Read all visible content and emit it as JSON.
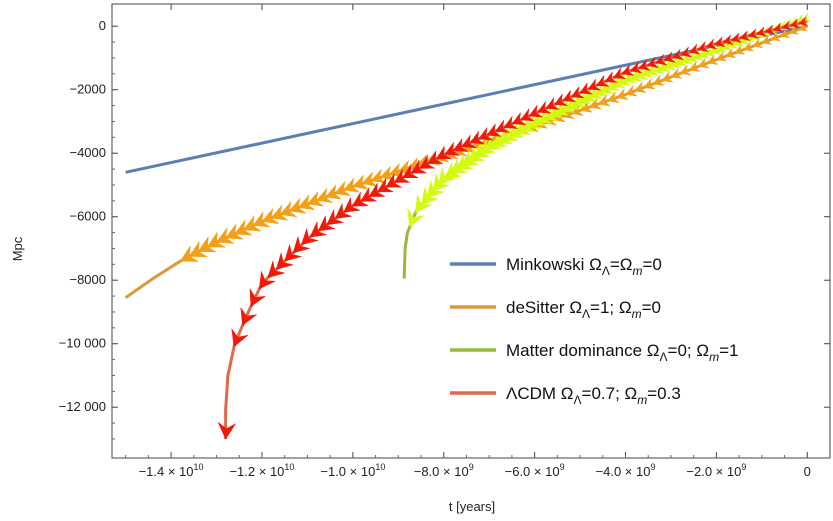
{
  "chart_data": {
    "type": "line",
    "title": "",
    "xlabel": "t [years]",
    "ylabel": "Mpc",
    "xlim": [
      -15300000000.0,
      500000000.0
    ],
    "ylim": [
      -13600,
      700
    ],
    "grid": false,
    "legend_position": "right",
    "x_ticks": [
      {
        "value": -14000000000.0,
        "mantissa": "−1.4",
        "exp": "10"
      },
      {
        "value": -12000000000.0,
        "mantissa": "−1.2",
        "exp": "10"
      },
      {
        "value": -10000000000.0,
        "mantissa": "−1.0",
        "exp": "10"
      },
      {
        "value": -8000000000.0,
        "mantissa": "−8.0",
        "exp": "9"
      },
      {
        "value": -6000000000.0,
        "mantissa": "−6.0",
        "exp": "9"
      },
      {
        "value": -4000000000.0,
        "mantissa": "−4.0",
        "exp": "9"
      },
      {
        "value": -2000000000.0,
        "mantissa": "−2.0",
        "exp": "9"
      },
      {
        "value": 0,
        "plain": "0"
      }
    ],
    "y_ticks": [
      {
        "value": 0,
        "label": "0"
      },
      {
        "value": -2000,
        "label": "−2000"
      },
      {
        "value": -4000,
        "label": "−4000"
      },
      {
        "value": -6000,
        "label": "−6000"
      },
      {
        "value": -8000,
        "label": "−8000"
      },
      {
        "value": -10000,
        "label": "−10 000"
      },
      {
        "value": -12000,
        "label": "−12 000"
      }
    ],
    "series": [
      {
        "name": "Minkowski",
        "legend_parts": [
          [
            "Minkowski ",
            "n"
          ],
          [
            "Ω",
            "n"
          ],
          [
            "Λ",
            "sub"
          ],
          [
            "=Ω",
            "n"
          ],
          [
            "m",
            "sub-i"
          ],
          [
            "=0",
            "n"
          ]
        ],
        "color": "#5b7fb0",
        "line_color": "#5b7fb0",
        "arrows": false,
        "x": [
          -15000000000.0,
          0
        ],
        "y": [
          -4600,
          0
        ]
      },
      {
        "name": "deSitter",
        "legend_parts": [
          [
            "deSitter ",
            "n"
          ],
          [
            "Ω",
            "n"
          ],
          [
            "Λ",
            "sub"
          ],
          [
            "=1; Ω",
            "n"
          ],
          [
            "m",
            "sub-i"
          ],
          [
            "=0",
            "n"
          ]
        ],
        "color": "#f5a014",
        "line_color": "#d99a3a",
        "arrows": true,
        "arrow_start": -13800000000.0,
        "x": [
          -15000000000.0,
          -14400000000.0,
          -13800000000.0,
          -13000000000.0,
          -12000000000.0,
          -10000000000.0,
          -8000000000.0,
          -6000000000.0,
          -4000000000.0,
          -2000000000.0,
          0
        ],
        "y": [
          -8550,
          -7950,
          -7400,
          -6800,
          -6150,
          -5050,
          -4100,
          -3150,
          -2150,
          -1050,
          0
        ]
      },
      {
        "name": "Matter dominance",
        "legend_parts": [
          [
            "Matter dominance ",
            "n"
          ],
          [
            "Ω",
            "n"
          ],
          [
            "Λ",
            "sub"
          ],
          [
            "=0; Ω",
            "n"
          ],
          [
            "m",
            "sub-i"
          ],
          [
            "=1",
            "n"
          ]
        ],
        "color": "#d4fa14",
        "line_color": "#98b83c",
        "arrows": true,
        "arrow_start": -8750000000.0,
        "x": [
          -8870000000.0,
          -8850000000.0,
          -8800000000.0,
          -8600000000.0,
          -8000000000.0,
          -7000000000.0,
          -6000000000.0,
          -4000000000.0,
          -2000000000.0,
          0
        ],
        "y": [
          -7950,
          -7000,
          -6500,
          -5800,
          -4800,
          -3800,
          -3050,
          -1700,
          -750,
          250
        ]
      },
      {
        "name": "ΛCDM",
        "legend_parts": [
          [
            "ΛCDM ",
            "n"
          ],
          [
            "Ω",
            "n"
          ],
          [
            "Λ",
            "sub"
          ],
          [
            "=0.7; Ω",
            "n"
          ],
          [
            "m",
            "sub-i"
          ],
          [
            "=0.3",
            "n"
          ]
        ],
        "color": "#f01a0a",
        "line_color": "#e06a4a",
        "arrows": true,
        "arrow_start": -12800000000.0,
        "x": [
          -12800000000.0,
          -12800000000.0,
          -12750000000.0,
          -12600000000.0,
          -12300000000.0,
          -12000000000.0,
          -11000000000.0,
          -10000000000.0,
          -8000000000.0,
          -6000000000.0,
          -4000000000.0,
          -2000000000.0,
          0
        ],
        "y": [
          -13000,
          -12100,
          -11000,
          -10000,
          -9000,
          -8100,
          -6700,
          -5650,
          -4050,
          -2750,
          -1450,
          -550,
          150
        ]
      }
    ]
  }
}
